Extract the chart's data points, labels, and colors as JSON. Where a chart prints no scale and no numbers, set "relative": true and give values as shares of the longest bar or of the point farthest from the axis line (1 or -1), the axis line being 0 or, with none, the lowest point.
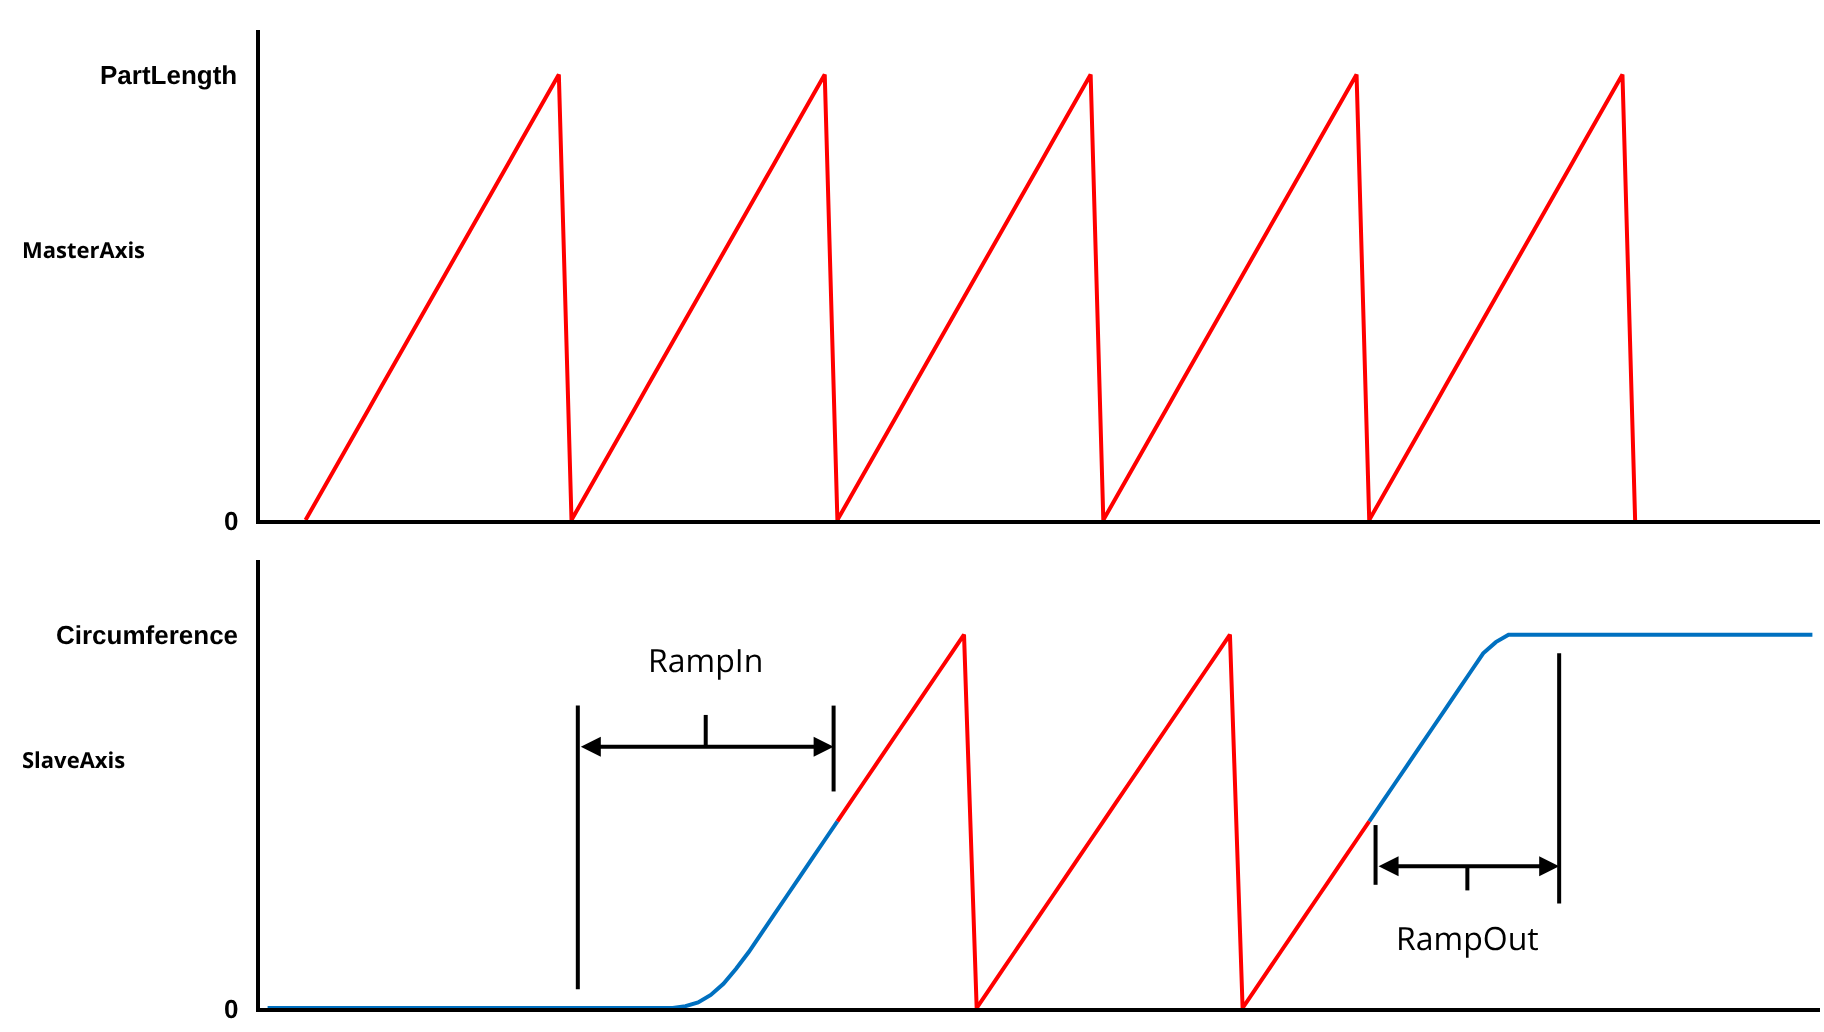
{
  "chart_data": [
    {
      "type": "line",
      "ylabel": "MasterAxis",
      "categories": [
        null,
        null,
        null,
        null,
        null,
        null,
        null,
        null,
        null,
        null,
        null,
        null,
        null,
        null,
        null,
        null,
        null,
        null,
        null,
        null,
        null,
        null,
        null,
        null,
        null,
        null,
        null,
        null,
        null,
        null,
        null,
        null,
        null,
        null,
        null,
        null,
        null,
        null,
        null,
        null,
        null,
        null,
        null,
        null,
        null,
        null,
        null,
        null,
        null,
        null,
        null,
        null,
        null,
        null,
        null,
        null,
        null,
        null,
        null,
        null,
        null,
        null,
        null,
        null,
        null,
        null,
        null,
        null,
        null,
        null,
        null,
        null,
        null,
        null,
        null,
        null,
        null,
        null,
        null,
        null,
        null,
        null,
        null,
        null,
        null,
        null,
        null,
        null,
        null,
        null,
        null,
        null,
        null,
        null,
        null,
        null,
        null,
        null,
        null,
        null,
        null,
        null,
        null,
        null,
        null,
        null,
        null,
        null,
        null,
        null,
        null,
        null,
        null,
        null,
        null,
        null,
        null,
        null,
        null,
        null,
        null,
        null,
        null
      ],
      "relative": true,
      "annotations": [
        "0",
        "PartLength"
      ],
      "marker": "none",
      "line_style": "solid",
      "series": [
        {
          "color": "#ff0000",
          "values": [
            null,
            null,
            null,
            0,
            0.05,
            0.1,
            0.15,
            0.2,
            0.25,
            0.3,
            0.35,
            0.4,
            0.45,
            0.5,
            0.55,
            0.6,
            0.65,
            0.7,
            0.75,
            0.8,
            0.85,
            0.9,
            0.95,
            1,
            0,
            0.05,
            0.1,
            0.15,
            0.2,
            0.25,
            0.3,
            0.35,
            0.4,
            0.45,
            0.5,
            0.55,
            0.6,
            0.65,
            0.7,
            0.75,
            0.8,
            0.85,
            0.9,
            0.95,
            1,
            0,
            0.05,
            0.1,
            0.15,
            0.2,
            0.25,
            0.3,
            0.35,
            0.4,
            0.45,
            0.5,
            0.55,
            0.6,
            0.65,
            0.7,
            0.75,
            0.8,
            0.85,
            0.9,
            0.95,
            1,
            0,
            0.05,
            0.1,
            0.15,
            0.2,
            0.25,
            0.3,
            0.35,
            0.4,
            0.45,
            0.5,
            0.55,
            0.6,
            0.65,
            0.7,
            0.75,
            0.8,
            0.85,
            0.9,
            0.95,
            1,
            0,
            0.05,
            0.1,
            0.15,
            0.2,
            0.25,
            0.3,
            0.35,
            0.4,
            0.45,
            0.5,
            0.55,
            0.6,
            0.65,
            0.7,
            0.75,
            0.8,
            0.85,
            0.9,
            0.95,
            1,
            0,
            null,
            null,
            null,
            null,
            null,
            null,
            null,
            null,
            null,
            null,
            null,
            null,
            null,
            null
          ]
        }
      ]
    },
    {
      "type": "line",
      "ylabel": "SlaveAxis",
      "categories": [
        null,
        null,
        null,
        null,
        null,
        null,
        null,
        null,
        null,
        null,
        null,
        null,
        null,
        null,
        null,
        null,
        null,
        null,
        null,
        null,
        null,
        null,
        null,
        null,
        null,
        null,
        null,
        null,
        null,
        null,
        null,
        null,
        null,
        null,
        null,
        null,
        null,
        null,
        null,
        null,
        null,
        null,
        null,
        null,
        null,
        null,
        null,
        null,
        null,
        null,
        null,
        null,
        null,
        null,
        null,
        null,
        null,
        null,
        null,
        null,
        null,
        null,
        null,
        null,
        null,
        null,
        null,
        null,
        null,
        null,
        null,
        null,
        null,
        null,
        null,
        null,
        null,
        null,
        null,
        null,
        null,
        null,
        null,
        null,
        null,
        null,
        null,
        null,
        null,
        null,
        null,
        null,
        null,
        null,
        null,
        null,
        null,
        null,
        null,
        null,
        null,
        null,
        null,
        null,
        null,
        null,
        null,
        null,
        null,
        null,
        null,
        null,
        null,
        null,
        null,
        null,
        null,
        null,
        null,
        null,
        null,
        null,
        null
      ],
      "relative": true,
      "marker": "none",
      "line_style": "solid",
      "annotations": [
        "0",
        "Circumference",
        "RampIn",
        "RampOut"
      ],
      "series": [
        {
          "color": "#0070c0",
          "values": [
            0,
            0,
            0,
            0,
            0,
            0,
            0,
            0,
            0,
            0,
            0,
            0,
            0,
            0,
            0,
            0,
            0,
            0,
            0,
            0,
            0,
            0,
            0,
            0,
            0,
            0,
            0,
            0,
            0,
            0,
            0,
            0,
            0,
            0.005,
            0.015,
            0.035,
            0.065,
            0.105,
            0.15,
            0.2,
            0.25,
            0.3,
            0.35,
            0.4,
            0.45,
            0.5,
            null,
            null,
            null,
            null,
            null,
            null,
            null,
            null,
            null,
            null,
            null,
            null,
            null,
            null,
            null,
            null,
            null,
            null,
            null,
            null,
            null,
            null,
            null,
            null,
            null,
            null,
            null,
            null,
            null,
            null,
            null,
            null,
            null,
            null,
            null,
            null,
            null,
            null,
            null,
            null,
            null,
            0.5,
            0.55,
            0.6,
            0.65,
            0.7,
            0.75,
            0.8,
            0.85,
            0.9,
            0.95,
            0.98,
            1,
            1,
            1,
            1,
            1,
            1,
            1,
            1,
            1,
            1,
            1,
            1,
            1,
            1,
            1,
            1,
            1,
            1,
            1,
            1,
            1,
            1,
            1,
            1,
            1
          ]
        },
        {
          "color": "#ff0000",
          "values": [
            null,
            null,
            null,
            null,
            null,
            null,
            null,
            null,
            null,
            null,
            null,
            null,
            null,
            null,
            null,
            null,
            null,
            null,
            null,
            null,
            null,
            null,
            null,
            null,
            null,
            null,
            null,
            null,
            null,
            null,
            null,
            null,
            null,
            null,
            null,
            null,
            null,
            null,
            null,
            null,
            null,
            null,
            null,
            null,
            null,
            0.5,
            0.55,
            0.6,
            0.65,
            0.7,
            0.75,
            0.8,
            0.85,
            0.9,
            0.95,
            1,
            0,
            0.05,
            0.1,
            0.15,
            0.2,
            0.25,
            0.3,
            0.35,
            0.4,
            0.45,
            0.5,
            0.55,
            0.6,
            0.65,
            0.7,
            0.75,
            0.8,
            0.85,
            0.9,
            0.95,
            1,
            0,
            0.05,
            0.1,
            0.15,
            0.2,
            0.25,
            0.3,
            0.35,
            0.4,
            0.45,
            0.5,
            null,
            null,
            null,
            null,
            null,
            null,
            null,
            null,
            null,
            null,
            null,
            null,
            null,
            null,
            null,
            null,
            null,
            null,
            null,
            null,
            null,
            null,
            null,
            null,
            null,
            null,
            null,
            null,
            null,
            null,
            null,
            null,
            null,
            null,
            null
          ]
        }
      ]
    }
  ]
}
